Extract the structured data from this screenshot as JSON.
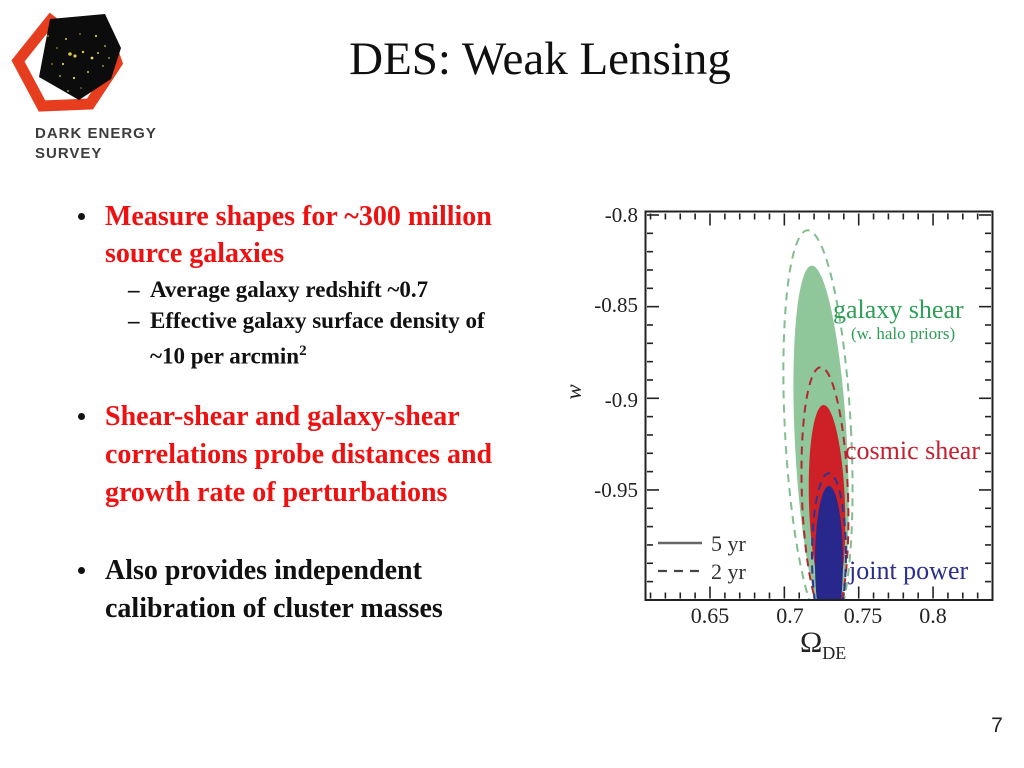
{
  "logo": {
    "line1": "DARK ENERGY",
    "line2": "SURVEY"
  },
  "title": "DES: Weak Lensing",
  "bullets": {
    "b1": {
      "line1": "Measure shapes for ~300 million",
      "line2": "source galaxies"
    },
    "b1_subs": {
      "s1": "Average galaxy redshift ~0.7",
      "s2_line1": "Effective galaxy surface density of",
      "s2_line2_base": "~10 per arcmin",
      "s2_line2_sup": "2"
    },
    "b2": {
      "line1": "Shear-shear and galaxy-shear",
      "line2": "correlations probe distances and",
      "line3": "growth rate of perturbations"
    },
    "b3": {
      "line1": "Also provides independent",
      "line2": "calibration of cluster masses"
    }
  },
  "page_number": "7",
  "chart_data": {
    "type": "contour",
    "xlabel_base": "Ω",
    "xlabel_sub": "DE",
    "ylabel": "w",
    "xlim": [
      0.606,
      0.84
    ],
    "ylim": [
      -1.01,
      -0.8
    ],
    "xticks": [
      0.65,
      0.7,
      0.75,
      0.8
    ],
    "xtick_labels": [
      "0.65",
      "0.7",
      "0.75",
      "0.8"
    ],
    "yticks": [
      -0.8,
      -0.85,
      -0.9,
      -0.95
    ],
    "ytick_labels": [
      "-0.8",
      "-0.85",
      "-0.9",
      "-0.95"
    ],
    "minor_step": 0.01,
    "grid": false,
    "legend": {
      "solid_label": "5 yr",
      "dashed_label": "2 yr",
      "position": "lower left"
    },
    "legend_meaning": "solid = 5 yr survey constraint, dashed = 2 yr survey constraint",
    "contours": [
      {
        "name": "galaxy shear (w. halo priors)",
        "label_line1": "galaxy shear",
        "label_line2": "(w. halo priors)",
        "text_color": "#2f9e57",
        "fill_color": "#8fc79a",
        "dash_color": "#82bd8f",
        "center_5yr": [
          0.7247,
          -0.9255
        ],
        "rx_5yr": 0.0175,
        "ry_5yr": 0.098,
        "center_2yr": [
          0.7226,
          -0.9173
        ],
        "rx_2yr": 0.0222,
        "ry_2yr": 0.1091,
        "tilt_deg": -3
      },
      {
        "name": "cosmic shear",
        "label_line1": "cosmic shear",
        "label_line2": "",
        "text_color": "#c42031",
        "fill_color": "#ce2127",
        "dash_color": "#b02830",
        "center_5yr": [
          0.7287,
          -0.9582
        ],
        "rx_5yr": 0.0121,
        "ry_5yr": 0.0546,
        "center_2yr": [
          0.7273,
          -0.9528
        ],
        "rx_2yr": 0.0155,
        "ry_2yr": 0.0698,
        "tilt_deg": -2
      },
      {
        "name": "joint power",
        "label_line1": "joint power",
        "label_line2": "",
        "text_color": "#2b2e8c",
        "fill_color": "#28288c",
        "dash_color": "#32328f",
        "center_5yr": [
          0.73,
          -0.9893
        ],
        "rx_5yr": 0.0094,
        "ry_5yr": 0.0415,
        "center_2yr": [
          0.73,
          -0.9855
        ],
        "rx_2yr": 0.0114,
        "ry_2yr": 0.0447,
        "tilt_deg": 0
      }
    ]
  }
}
